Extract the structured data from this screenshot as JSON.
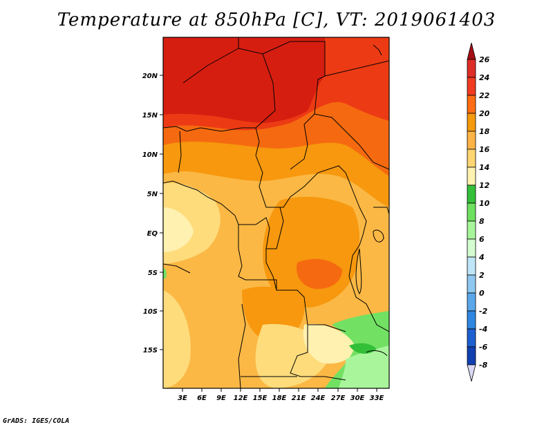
{
  "title": "Temperature at 850hPa [C], VT: 2019061403",
  "credit": "GrADS: IGES/COLA",
  "lat_labels": [
    "20N",
    "15N",
    "10N",
    "5N",
    "EQ",
    "5S",
    "10S",
    "15S"
  ],
  "lon_labels": [
    "3E",
    "6E",
    "9E",
    "12E",
    "15E",
    "18E",
    "21E",
    "24E",
    "27E",
    "30E",
    "33E"
  ],
  "colorbar": {
    "labels": [
      "26",
      "24",
      "22",
      "20",
      "18",
      "16",
      "14",
      "12",
      "10",
      "8",
      "6",
      "4",
      "2",
      "0",
      "-2",
      "-4",
      "-6",
      "-8"
    ],
    "colors": [
      "#a50f15",
      "#de2d26",
      "#f03b20",
      "#fd6d14",
      "#f59a0c",
      "#fdb447",
      "#fdd672",
      "#fff2b0",
      "#34c03a",
      "#6ee05f",
      "#a8f59a",
      "#d3fcd0",
      "#bfe6f7",
      "#8ec8f0",
      "#5aa8ea",
      "#2f86e0",
      "#1c5fd0",
      "#103fb0",
      "#0a2690",
      "#07107a",
      "#d9d9f5"
    ]
  },
  "map_colors": {
    "c26": "#d61e10",
    "c24": "#ec3b14",
    "c22": "#f56a10",
    "c20": "#f7980e",
    "c18": "#fbb845",
    "c16": "#fedc7c",
    "c14": "#fff1b0",
    "c12": "#33bf38",
    "c10": "#72e063",
    "c8": "#a9f59c"
  }
}
